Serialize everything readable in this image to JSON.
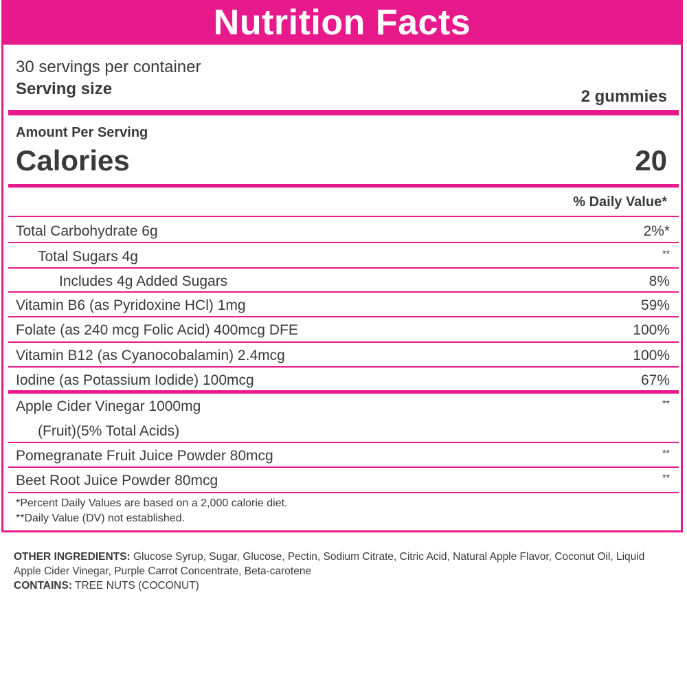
{
  "header": {
    "title": "Nutrition Facts"
  },
  "serving": {
    "servings_per_container": "30 servings per container",
    "size_label": "Serving size",
    "size_value": "2 gummies"
  },
  "calories": {
    "amount_label": "Amount Per Serving",
    "label": "Calories",
    "value": "20"
  },
  "dv_header": "% Daily Value*",
  "nutrients": [
    {
      "name": "Total Carbohydrate 6g",
      "value": "2%*"
    },
    {
      "name": "Total Sugars 4g",
      "value": "**"
    },
    {
      "name": "Includes 4g Added Sugars",
      "value": "8%"
    },
    {
      "name": "Vitamin B6 (as Pyridoxine HCl) 1mg",
      "value": "59%"
    },
    {
      "name": "Folate (as 240 mcg Folic Acid) 400mcg DFE",
      "value": "100%"
    },
    {
      "name": "Vitamin B12 (as Cyanocobalamin) 2.4mcg",
      "value": "100%"
    },
    {
      "name": "Iodine (as Potassium Iodide) 100mcg",
      "value": "67%"
    }
  ],
  "others": [
    {
      "name": "Apple Cider Vinegar 1000mg",
      "value": "**"
    },
    {
      "name": "(Fruit)(5% Total Acids)",
      "value": ""
    },
    {
      "name": "Pomegranate Fruit Juice Powder 80mcg",
      "value": "**"
    },
    {
      "name": "Beet Root Juice Powder 80mcg",
      "value": "**"
    }
  ],
  "footnotes": [
    "*Percent Daily Values are based on a 2,000 calorie diet.",
    "**Daily Value (DV) not established."
  ],
  "ingredients": {
    "other_label": "OTHER INGREDIENTS:",
    "other_text": " Glucose Syrup, Sugar, Glucose, Pectin, Sodium Citrate, Citric Acid, Natural Apple Flavor, Coconut Oil, Liquid Apple Cider Vinegar, Purple Carrot Concentrate, Beta-carotene",
    "contains_label": "CONTAINS:",
    "contains_text": " TREE NUTS (COCONUT)"
  },
  "colors": {
    "accent": "#e8198a",
    "text": "#3a3a3a"
  }
}
